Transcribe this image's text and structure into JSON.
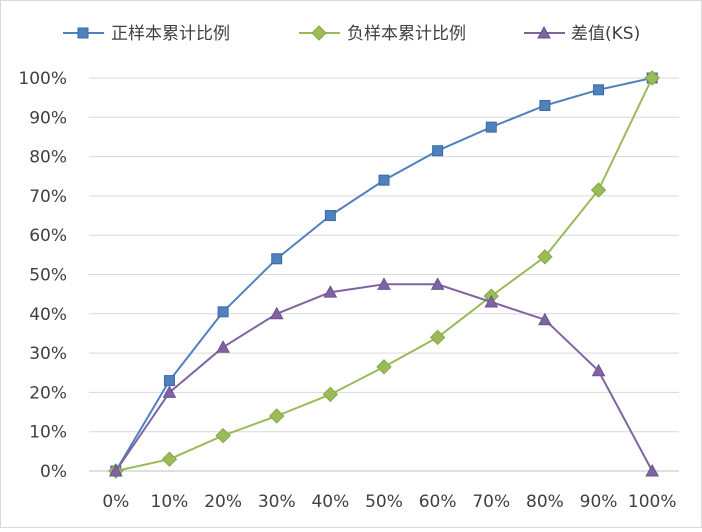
{
  "chart_data": {
    "type": "line",
    "title": "",
    "xlabel": "",
    "ylabel": "",
    "categories": [
      "0%",
      "10%",
      "20%",
      "30%",
      "40%",
      "50%",
      "60%",
      "70%",
      "80%",
      "90%",
      "100%"
    ],
    "y_ticks": [
      "0%",
      "10%",
      "20%",
      "30%",
      "40%",
      "50%",
      "60%",
      "70%",
      "80%",
      "90%",
      "100%"
    ],
    "ylim": [
      0,
      100
    ],
    "grid": true,
    "legend_position": "top",
    "series": [
      {
        "name": "正样本累计比例",
        "color": "#4f81bd",
        "marker": "square",
        "values": [
          0,
          23,
          40.5,
          54,
          65,
          74,
          81.5,
          87.5,
          93,
          97,
          100
        ]
      },
      {
        "name": "负样本累计比例",
        "color": "#9bbb59",
        "marker": "diamond",
        "values": [
          0,
          3,
          9,
          14,
          19.5,
          26.5,
          34,
          44.5,
          54.5,
          71.5,
          100
        ]
      },
      {
        "name": "差值(KS)",
        "color": "#8064a2",
        "marker": "triangle",
        "values": [
          0,
          20,
          31.5,
          40,
          45.5,
          47.5,
          47.5,
          43,
          38.5,
          25.5,
          0
        ]
      }
    ]
  }
}
